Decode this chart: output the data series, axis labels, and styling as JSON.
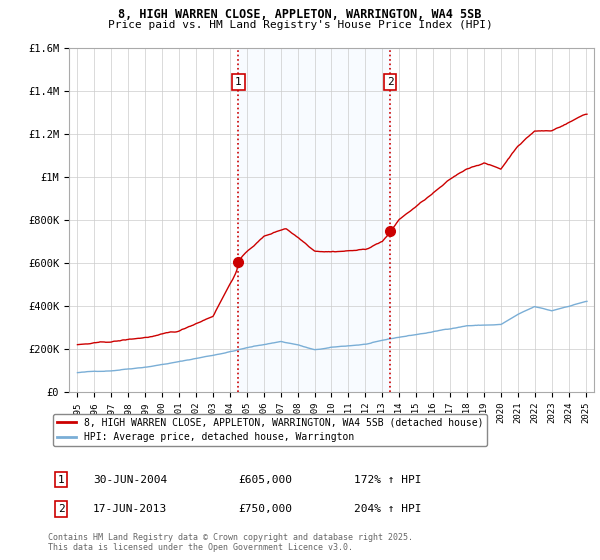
{
  "title_line1": "8, HIGH WARREN CLOSE, APPLETON, WARRINGTON, WA4 5SB",
  "title_line2": "Price paid vs. HM Land Registry's House Price Index (HPI)",
  "legend_label1": "8, HIGH WARREN CLOSE, APPLETON, WARRINGTON, WA4 5SB (detached house)",
  "legend_label2": "HPI: Average price, detached house, Warrington",
  "annotation_footer": "Contains HM Land Registry data © Crown copyright and database right 2025.\nThis data is licensed under the Open Government Licence v3.0.",
  "sale1_label": "1",
  "sale1_date": "30-JUN-2004",
  "sale1_price": "£605,000",
  "sale1_hpi": "172% ↑ HPI",
  "sale2_label": "2",
  "sale2_date": "17-JUN-2013",
  "sale2_price": "£750,000",
  "sale2_hpi": "204% ↑ HPI",
  "sale1_year": 2004.5,
  "sale1_value": 605000,
  "sale2_year": 2013.46,
  "sale2_value": 750000,
  "hpi_line_color": "#7aaed6",
  "price_line_color": "#cc0000",
  "vline_color": "#cc0000",
  "shade_color": "#ddeeff",
  "background_color": "#ffffff",
  "grid_color": "#cccccc",
  "ylim_max": 1600000,
  "ylim_min": 0,
  "xlim_min": 1994.5,
  "xlim_max": 2025.5,
  "yticks": [
    0,
    200000,
    400000,
    600000,
    800000,
    1000000,
    1200000,
    1400000,
    1600000
  ],
  "ytick_labels": [
    "£0",
    "£200K",
    "£400K",
    "£600K",
    "£800K",
    "£1M",
    "£1.2M",
    "£1.4M",
    "£1.6M"
  ],
  "xticks": [
    1995,
    1996,
    1997,
    1998,
    1999,
    2000,
    2001,
    2002,
    2003,
    2004,
    2005,
    2006,
    2007,
    2008,
    2009,
    2010,
    2011,
    2012,
    2013,
    2014,
    2015,
    2016,
    2017,
    2018,
    2019,
    2020,
    2021,
    2022,
    2023,
    2024,
    2025
  ]
}
